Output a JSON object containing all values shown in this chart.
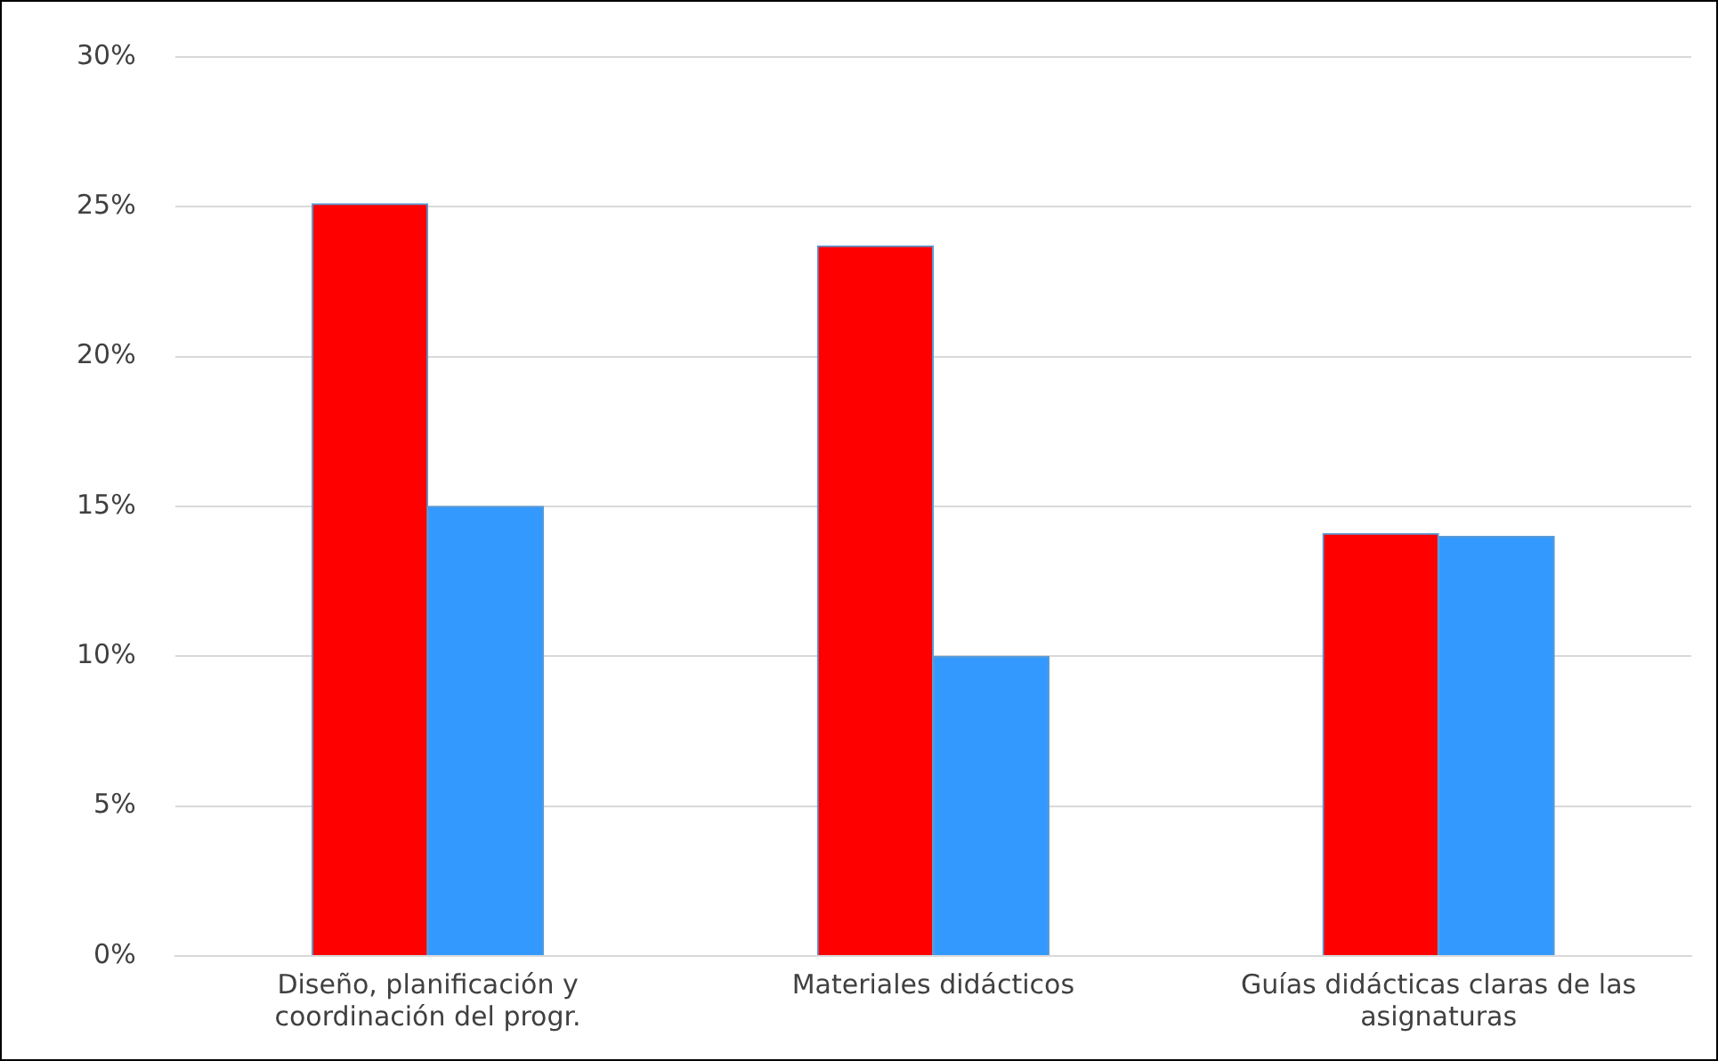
{
  "chart_data": {
    "type": "bar",
    "categories": [
      [
        "Diseño, planificación y",
        "coordinación del progr."
      ],
      "Materiales didácticos",
      [
        "Guías didácticas claras de las",
        "asignaturas"
      ]
    ],
    "series": [
      {
        "color": "#ff0000",
        "values": [
          25.1,
          23.7,
          14.1
        ]
      },
      {
        "color": "#3399ff",
        "values": [
          15.0,
          10.0,
          14.0
        ]
      }
    ],
    "ylim": [
      0,
      30
    ],
    "yticks": [
      {
        "value": 0,
        "label": "0%"
      },
      {
        "value": 5,
        "label": "5%"
      },
      {
        "value": 10,
        "label": "10%"
      },
      {
        "value": 15,
        "label": "15%"
      },
      {
        "value": 20,
        "label": "20%"
      },
      {
        "value": 25,
        "label": "25%"
      },
      {
        "value": 30,
        "label": "30%"
      }
    ],
    "grid": "y",
    "legend": false
  }
}
